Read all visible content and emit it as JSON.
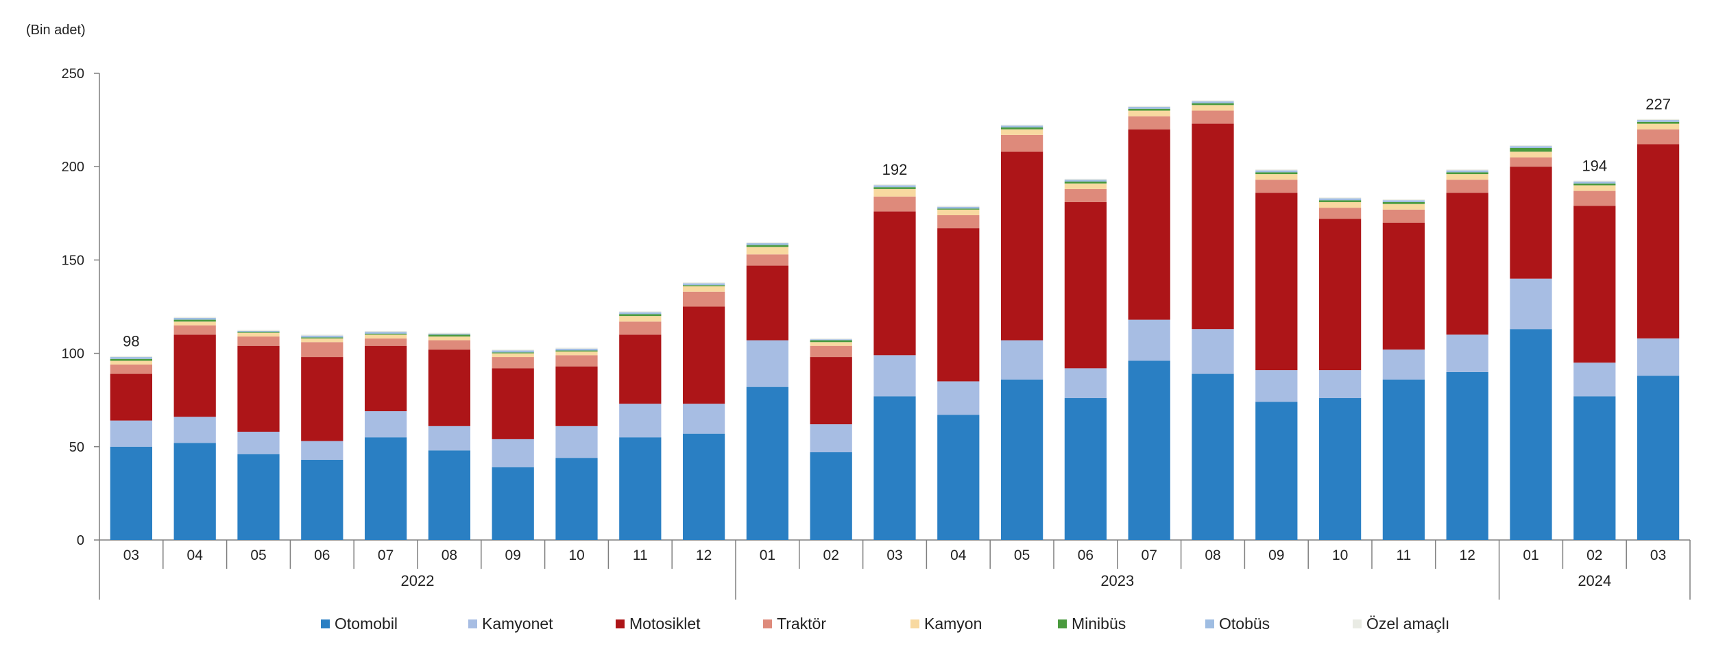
{
  "chart_data": {
    "type": "bar",
    "stacked": true,
    "title": "",
    "unit_label": "(Bin adet)",
    "xlabel": "",
    "ylabel": "",
    "ylim": [
      0,
      250
    ],
    "yticks": [
      0,
      50,
      100,
      150,
      200,
      250
    ],
    "categories": [
      "03",
      "04",
      "05",
      "06",
      "07",
      "08",
      "09",
      "10",
      "11",
      "12",
      "01",
      "02",
      "03",
      "04",
      "05",
      "06",
      "07",
      "08",
      "09",
      "10",
      "11",
      "12",
      "01",
      "02",
      "03"
    ],
    "year_groups": [
      {
        "label": "2022",
        "start": 0,
        "end": 9
      },
      {
        "label": "2023",
        "start": 10,
        "end": 21
      },
      {
        "label": "2024",
        "start": 22,
        "end": 24
      }
    ],
    "series": [
      {
        "name": "Otomobil",
        "color": "#2a7fc3",
        "values": [
          50,
          52,
          46,
          43,
          55,
          48,
          39,
          44,
          55,
          57,
          82,
          47,
          77,
          67,
          86,
          76,
          96,
          89,
          74,
          76,
          86,
          90,
          113,
          77,
          88
        ]
      },
      {
        "name": "Kamyonet",
        "color": "#a7bde3",
        "values": [
          14,
          14,
          12,
          10,
          14,
          13,
          15,
          17,
          18,
          16,
          25,
          15,
          22,
          18,
          21,
          16,
          22,
          24,
          17,
          15,
          16,
          20,
          27,
          18,
          20
        ]
      },
      {
        "name": "Motosiklet",
        "color": "#ad1518",
        "values": [
          25,
          44,
          46,
          45,
          35,
          41,
          38,
          32,
          37,
          52,
          40,
          36,
          77,
          82,
          101,
          89,
          102,
          110,
          95,
          81,
          68,
          76,
          60,
          84,
          104
        ]
      },
      {
        "name": "Traktör",
        "color": "#de8a7b",
        "values": [
          5,
          5,
          5,
          8,
          4,
          5,
          6,
          6,
          7,
          8,
          6,
          6,
          8,
          7,
          9,
          7,
          7,
          7,
          7,
          6,
          7,
          7,
          5,
          8,
          8
        ]
      },
      {
        "name": "Kamyon",
        "color": "#f8d9a0",
        "values": [
          2,
          2,
          2,
          2,
          2,
          2,
          2,
          2,
          3,
          3,
          4,
          2,
          4,
          3,
          3,
          3,
          3,
          3,
          3,
          3,
          3,
          3,
          3,
          3,
          3
        ]
      },
      {
        "name": "Minibüs",
        "color": "#4a9a3e",
        "values": [
          1,
          1,
          0.5,
          0.5,
          0.5,
          1,
          0.5,
          0.5,
          1,
          0.5,
          1,
          1,
          1,
          0.5,
          1,
          1,
          1,
          1,
          1,
          1,
          1,
          1,
          2,
          1,
          1
        ]
      },
      {
        "name": "Otobüs",
        "color": "#9fbde2",
        "values": [
          1,
          1,
          0.5,
          1,
          1,
          0.5,
          1,
          1,
          1,
          1,
          1,
          0.5,
          1,
          1,
          1,
          1,
          1,
          1,
          1,
          1,
          1,
          1,
          1,
          1,
          1
        ]
      },
      {
        "name": "Özel amaçlı",
        "color": "#e9ebe4",
        "values": [
          0.5,
          0.5,
          0.5,
          0.5,
          0.5,
          0.5,
          0.5,
          0.5,
          0.5,
          0.5,
          0.5,
          0.5,
          0.5,
          0.5,
          0.5,
          0.5,
          0.5,
          0.5,
          0.5,
          0.5,
          0.5,
          0.5,
          0.5,
          0.5,
          0.5
        ]
      }
    ],
    "annotations": [
      {
        "index": 0,
        "text": "98",
        "value": 98
      },
      {
        "index": 12,
        "text": "192",
        "value": 192
      },
      {
        "index": 23,
        "text": "194",
        "value": 194
      },
      {
        "index": 24,
        "text": "227",
        "value": 227
      }
    ],
    "grid": false,
    "legend_position": "bottom"
  }
}
